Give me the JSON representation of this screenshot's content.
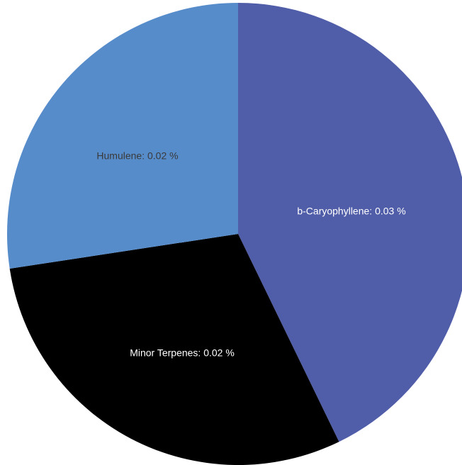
{
  "chart_data": {
    "type": "pie",
    "slices": [
      {
        "label": "b-Caryophyllene: 0.03 %",
        "name": "b-Caryophyllene",
        "value": 0.03,
        "color": "#505da8"
      },
      {
        "label": "Minor Terpenes: 0.02 %",
        "name": "Minor Terpenes",
        "value": 0.02,
        "color": "#000000"
      },
      {
        "label": "Humulene: 0.02 %",
        "name": "Humulene",
        "value": 0.02,
        "color": "#578ccb"
      }
    ],
    "label_colors": [
      "#ffffff",
      "#ffffff",
      "#3a3a3a"
    ]
  }
}
